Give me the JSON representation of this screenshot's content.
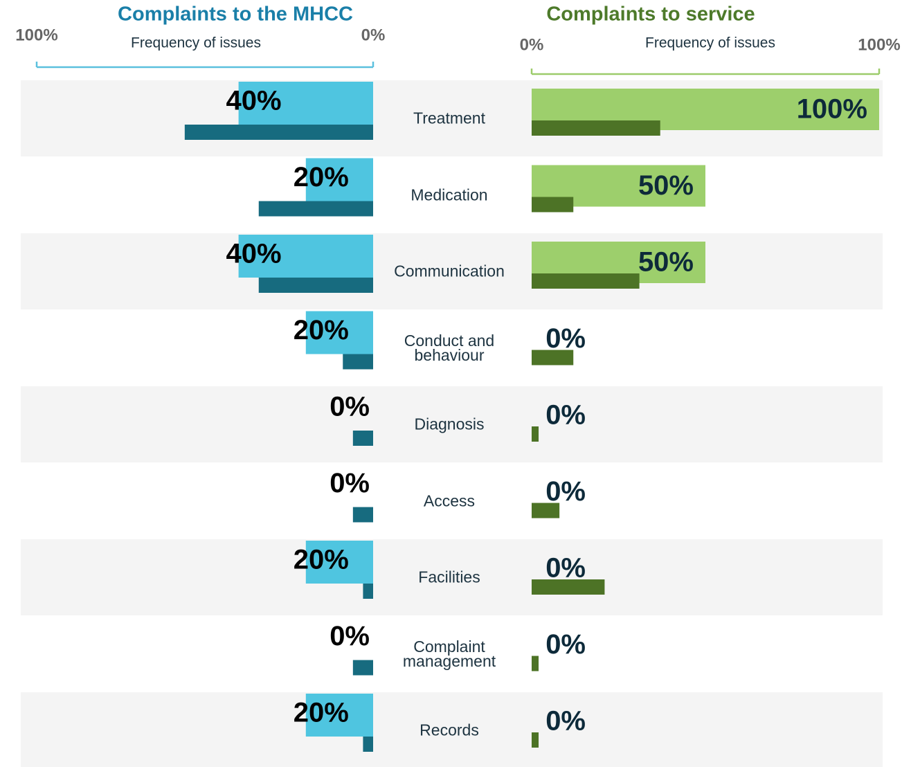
{
  "chart_data": [
    {
      "type": "bar",
      "title": "Complaints to the MHCC",
      "xlabel": "Frequency of issues",
      "xlim": [
        100,
        0
      ],
      "xticks": [
        {
          "value": 100,
          "label": "100%"
        },
        {
          "value": 0,
          "label": "0%"
        }
      ],
      "categories": [
        "Treatment",
        "Medication",
        "Communication",
        "Conduct and behaviour",
        "Diagnosis",
        "Access",
        "Facilities",
        "Complaint management",
        "Records"
      ],
      "series": [
        {
          "color": "#4fc5e0",
          "values": [
            40,
            20,
            40,
            20,
            0,
            0,
            20,
            0,
            20
          ],
          "value_labels": [
            "40%",
            "20%",
            "40%",
            "20%",
            "0%",
            "0%",
            "20%",
            "0%",
            "20%"
          ]
        },
        {
          "color": "#176b7f",
          "values": [
            56,
            34,
            34,
            9,
            6,
            6,
            3,
            6,
            3
          ]
        }
      ]
    },
    {
      "type": "bar",
      "title": "Complaints to service",
      "xlabel": "Frequency of issues",
      "xlim": [
        0,
        100
      ],
      "xticks": [
        {
          "value": 0,
          "label": "0%"
        },
        {
          "value": 100,
          "label": "100%"
        }
      ],
      "series": [
        {
          "color": "#9dcf6c",
          "values": [
            100,
            50,
            50,
            0,
            0,
            0,
            0,
            0,
            0
          ],
          "value_labels": [
            "100%",
            "50%",
            "50%",
            "0%",
            "0%",
            "0%",
            "0%",
            "0%",
            "0%"
          ]
        },
        {
          "color": "#4d7326",
          "values": [
            37,
            12,
            31,
            12,
            2,
            8,
            21,
            2,
            2
          ]
        }
      ]
    }
  ]
}
